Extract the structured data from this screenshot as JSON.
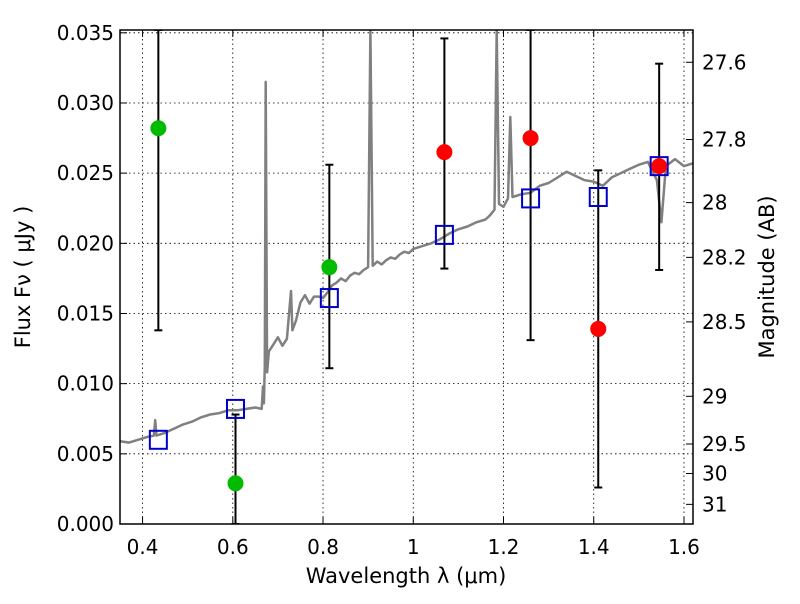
{
  "chart_data": {
    "type": "scatter",
    "xlabel": "Wavelength  λ (μm)",
    "ylabel": "Flux  Fν  ( μJy )",
    "ylabel_right": "Magnitude (AB)",
    "xlim": [
      0.35,
      1.62
    ],
    "ylim": [
      0.0,
      0.0352
    ],
    "grid": true,
    "x_ticks": [
      0.4,
      0.6,
      0.8,
      1.0,
      1.2,
      1.4,
      1.6
    ],
    "x_tick_labels": [
      "0.4",
      "0.6",
      "0.8",
      "1",
      "1.2",
      "1.4",
      "1.6"
    ],
    "y_ticks": [
      0.0,
      0.005,
      0.01,
      0.015,
      0.02,
      0.025,
      0.03,
      0.035
    ],
    "y_tick_labels": [
      "0.000",
      "0.005",
      "0.010",
      "0.015",
      "0.020",
      "0.025",
      "0.030",
      "0.035"
    ],
    "right_ticks": [
      {
        "label": "27.6",
        "flux": 0.0329
      },
      {
        "label": "27.8",
        "flux": 0.0274
      },
      {
        "label": "28",
        "flux": 0.0229
      },
      {
        "label": "28.2",
        "flux": 0.019
      },
      {
        "label": "28.5",
        "flux": 0.0144
      },
      {
        "label": "29",
        "flux": 0.0091
      },
      {
        "label": "29.5",
        "flux": 0.0057
      },
      {
        "label": "30",
        "flux": 0.0036
      },
      {
        "label": "31",
        "flux": 0.0014
      }
    ],
    "colors": {
      "observed_detection": "#00bb00",
      "observed_other": "#ff0000",
      "model_box": "#0000cc",
      "spectrum": "#808080",
      "errorbar": "#000000"
    },
    "observed_points": [
      {
        "x": 0.435,
        "y": 0.0282,
        "yerr_low": 0.0138,
        "yerr_high": 0.0352,
        "color": "#00bb00"
      },
      {
        "x": 0.606,
        "y": 0.0029,
        "yerr_low": 0.0,
        "yerr_high": 0.0078,
        "color": "#00bb00"
      },
      {
        "x": 0.814,
        "y": 0.0183,
        "yerr_low": 0.0111,
        "yerr_high": 0.0256,
        "color": "#00bb00"
      },
      {
        "x": 1.069,
        "y": 0.0265,
        "yerr_low": 0.0182,
        "yerr_high": 0.0346,
        "color": "#ff0000"
      },
      {
        "x": 1.26,
        "y": 0.0275,
        "yerr_low": 0.0131,
        "yerr_high": 0.0352,
        "color": "#ff0000"
      },
      {
        "x": 1.41,
        "y": 0.0139,
        "yerr_low": 0.0026,
        "yerr_high": 0.0252,
        "color": "#ff0000"
      },
      {
        "x": 1.545,
        "y": 0.0255,
        "yerr_low": 0.0181,
        "yerr_high": 0.0328,
        "color": "#ff0000"
      }
    ],
    "model_points": [
      {
        "x": 0.435,
        "y": 0.006
      },
      {
        "x": 0.606,
        "y": 0.0082
      },
      {
        "x": 0.814,
        "y": 0.0161
      },
      {
        "x": 1.069,
        "y": 0.0206
      },
      {
        "x": 1.26,
        "y": 0.0232
      },
      {
        "x": 1.41,
        "y": 0.0233
      },
      {
        "x": 1.545,
        "y": 0.0255
      }
    ],
    "spectrum": [
      [
        0.35,
        0.0059
      ],
      [
        0.37,
        0.0058
      ],
      [
        0.39,
        0.006
      ],
      [
        0.41,
        0.0062
      ],
      [
        0.425,
        0.0063
      ],
      [
        0.428,
        0.0074
      ],
      [
        0.431,
        0.0063
      ],
      [
        0.45,
        0.0065
      ],
      [
        0.47,
        0.0068
      ],
      [
        0.49,
        0.0071
      ],
      [
        0.51,
        0.0073
      ],
      [
        0.53,
        0.0076
      ],
      [
        0.55,
        0.0078
      ],
      [
        0.57,
        0.0079
      ],
      [
        0.59,
        0.0081
      ],
      [
        0.61,
        0.0081
      ],
      [
        0.63,
        0.0082
      ],
      [
        0.65,
        0.0083
      ],
      [
        0.664,
        0.0082
      ],
      [
        0.667,
        0.0098
      ],
      [
        0.669,
        0.0086
      ],
      [
        0.671,
        0.0113
      ],
      [
        0.673,
        0.0315
      ],
      [
        0.676,
        0.0108
      ],
      [
        0.68,
        0.0123
      ],
      [
        0.69,
        0.0128
      ],
      [
        0.7,
        0.0133
      ],
      [
        0.71,
        0.0127
      ],
      [
        0.72,
        0.0132
      ],
      [
        0.729,
        0.0166
      ],
      [
        0.732,
        0.0138
      ],
      [
        0.74,
        0.0145
      ],
      [
        0.75,
        0.0158
      ],
      [
        0.76,
        0.0163
      ],
      [
        0.77,
        0.0157
      ],
      [
        0.78,
        0.0162
      ],
      [
        0.79,
        0.0162
      ],
      [
        0.8,
        0.0161
      ],
      [
        0.81,
        0.0165
      ],
      [
        0.82,
        0.017
      ],
      [
        0.83,
        0.0172
      ],
      [
        0.84,
        0.0175
      ],
      [
        0.85,
        0.0173
      ],
      [
        0.86,
        0.0177
      ],
      [
        0.87,
        0.0179
      ],
      [
        0.88,
        0.0178
      ],
      [
        0.89,
        0.0181
      ],
      [
        0.9,
        0.0183
      ],
      [
        0.905,
        0.0352
      ],
      [
        0.91,
        0.0184
      ],
      [
        0.92,
        0.0187
      ],
      [
        0.93,
        0.0185
      ],
      [
        0.94,
        0.0188
      ],
      [
        0.95,
        0.019
      ],
      [
        0.96,
        0.0189
      ],
      [
        0.97,
        0.0192
      ],
      [
        0.98,
        0.0194
      ],
      [
        0.99,
        0.0193
      ],
      [
        1.0,
        0.0196
      ],
      [
        1.02,
        0.0198
      ],
      [
        1.04,
        0.02
      ],
      [
        1.06,
        0.0203
      ],
      [
        1.08,
        0.0207
      ],
      [
        1.1,
        0.021
      ],
      [
        1.12,
        0.0212
      ],
      [
        1.14,
        0.0215
      ],
      [
        1.16,
        0.0217
      ],
      [
        1.17,
        0.022
      ],
      [
        1.18,
        0.0224
      ],
      [
        1.185,
        0.0352
      ],
      [
        1.19,
        0.0228
      ],
      [
        1.2,
        0.0226
      ],
      [
        1.21,
        0.0232
      ],
      [
        1.215,
        0.029
      ],
      [
        1.22,
        0.0233
      ],
      [
        1.24,
        0.0235
      ],
      [
        1.26,
        0.0236
      ],
      [
        1.28,
        0.0241
      ],
      [
        1.3,
        0.0243
      ],
      [
        1.32,
        0.0247
      ],
      [
        1.34,
        0.0251
      ],
      [
        1.36,
        0.0248
      ],
      [
        1.38,
        0.0245
      ],
      [
        1.4,
        0.0244
      ],
      [
        1.42,
        0.0241
      ],
      [
        1.44,
        0.0247
      ],
      [
        1.46,
        0.025
      ],
      [
        1.48,
        0.0253
      ],
      [
        1.5,
        0.0256
      ],
      [
        1.52,
        0.0258
      ],
      [
        1.54,
        0.0245
      ],
      [
        1.55,
        0.0215
      ],
      [
        1.56,
        0.0255
      ],
      [
        1.58,
        0.026
      ],
      [
        1.6,
        0.0255
      ],
      [
        1.62,
        0.0257
      ]
    ]
  }
}
